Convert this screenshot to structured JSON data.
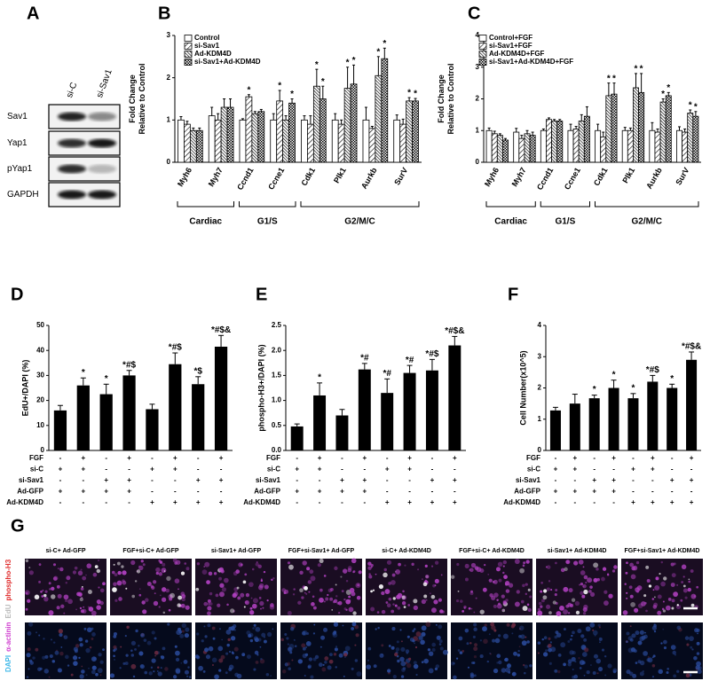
{
  "blot": {
    "panel_label": "A",
    "lanes": [
      "si-C",
      "si-Sav1"
    ],
    "rows": [
      "Sav1",
      "Yap1",
      "pYap1",
      "GAPDH"
    ]
  },
  "chart_data": [
    {
      "type": "bar",
      "panel_label": "B",
      "ylabel": [
        "Fold Change",
        "Relative to Control"
      ],
      "categories": [
        "Myh6",
        "Myh7",
        "Ccnd1",
        "Ccne1",
        "Cdk1",
        "Plk1",
        "Aurkb",
        "SurV"
      ],
      "groups": [
        {
          "label": "Cardiac",
          "from": 0,
          "to": 1
        },
        {
          "label": "G1/S",
          "from": 2,
          "to": 3
        },
        {
          "label": "G2/M/C",
          "from": 4,
          "to": 7
        }
      ],
      "ylim": [
        0,
        3
      ],
      "yticks": [
        0,
        1,
        2,
        3
      ],
      "series": [
        {
          "name": "Control",
          "fill": "white",
          "values": [
            1.0,
            1.1,
            1.0,
            1.0,
            1.0,
            1.0,
            1.0,
            1.0
          ],
          "errors": [
            0.08,
            0.2,
            0.03,
            0.15,
            0.1,
            0.15,
            0.3,
            0.12
          ],
          "significance": [
            null,
            null,
            null,
            null,
            null,
            null,
            null,
            null
          ]
        },
        {
          "name": "si-Sav1",
          "fill": "hatch",
          "values": [
            0.9,
            1.0,
            1.55,
            1.45,
            0.9,
            0.9,
            0.8,
            0.9
          ],
          "errors": [
            0.07,
            0.15,
            0.05,
            0.25,
            0.2,
            0.1,
            0.05,
            0.12
          ],
          "significance": [
            null,
            null,
            "*",
            "*",
            null,
            null,
            null,
            null
          ]
        },
        {
          "name": "Ad-KDM4D",
          "fill": "dense",
          "values": [
            0.75,
            1.3,
            1.15,
            1.0,
            1.8,
            1.75,
            2.05,
            1.45
          ],
          "errors": [
            0.06,
            0.2,
            0.05,
            0.1,
            0.4,
            0.5,
            0.45,
            0.08
          ],
          "significance": [
            null,
            null,
            null,
            null,
            "*",
            "*",
            "*",
            "*"
          ]
        },
        {
          "name": "si-Sav1+Ad-KDM4D",
          "fill": "checker",
          "values": [
            0.75,
            1.3,
            1.2,
            1.4,
            1.5,
            1.85,
            2.45,
            1.45
          ],
          "errors": [
            0.06,
            0.2,
            0.05,
            0.1,
            0.3,
            0.45,
            0.25,
            0.06
          ],
          "significance": [
            null,
            null,
            null,
            "*",
            "*",
            "*",
            "*",
            "*"
          ]
        }
      ]
    },
    {
      "type": "bar",
      "panel_label": "C",
      "ylabel": [
        "Fold Change",
        "Relative to Control"
      ],
      "categories": [
        "Myh6",
        "Myh7",
        "Ccnd1",
        "Ccne1",
        "Cdk1",
        "Plk1",
        "Aurkb",
        "SurV"
      ],
      "groups": [
        {
          "label": "Cardiac",
          "from": 0,
          "to": 1
        },
        {
          "label": "G1/S",
          "from": 2,
          "to": 3
        },
        {
          "label": "G2/M/C",
          "from": 4,
          "to": 7
        }
      ],
      "ylim": [
        0,
        4
      ],
      "yticks": [
        0,
        1,
        2,
        3,
        4
      ],
      "series": [
        {
          "name": "Control+FGF",
          "fill": "white",
          "values": [
            1.0,
            0.95,
            1.0,
            1.0,
            1.0,
            1.0,
            1.0,
            1.0
          ],
          "errors": [
            0.08,
            0.12,
            0.05,
            0.2,
            0.2,
            0.1,
            0.25,
            0.12
          ],
          "significance": [
            null,
            null,
            null,
            null,
            null,
            null,
            null,
            null
          ]
        },
        {
          "name": "si-Sav1+FGF",
          "fill": "hatch",
          "values": [
            0.9,
            0.75,
            1.35,
            1.05,
            0.8,
            1.0,
            0.95,
            0.95
          ],
          "errors": [
            0.08,
            0.1,
            0.05,
            0.08,
            0.15,
            0.08,
            0.1,
            0.1
          ],
          "significance": [
            null,
            null,
            null,
            null,
            null,
            null,
            null,
            null
          ]
        },
        {
          "name": "Ad-KDM4D+FGF",
          "fill": "dense",
          "values": [
            0.85,
            0.9,
            1.3,
            1.3,
            2.1,
            2.35,
            1.9,
            1.55
          ],
          "errors": [
            0.05,
            0.1,
            0.05,
            0.2,
            0.4,
            0.45,
            0.1,
            0.1
          ],
          "significance": [
            null,
            null,
            null,
            null,
            "*",
            "*",
            "*",
            "*"
          ]
        },
        {
          "name": "si-Sav1+Ad-KDM4D+FGF",
          "fill": "checker",
          "values": [
            0.7,
            0.85,
            1.3,
            1.45,
            2.15,
            2.2,
            2.1,
            1.45
          ],
          "errors": [
            0.05,
            0.1,
            0.05,
            0.3,
            0.35,
            0.6,
            0.1,
            0.15
          ],
          "significance": [
            null,
            null,
            null,
            null,
            "*",
            "*",
            "*",
            "*"
          ]
        }
      ]
    },
    {
      "type": "bar",
      "panel_label": "D",
      "ylabel": [
        "EdU+/DAPI (%)"
      ],
      "color": "#000000",
      "values": [
        16,
        26,
        22.5,
        30,
        16.5,
        34.5,
        26.5,
        41.5
      ],
      "errors": [
        2,
        3,
        4,
        2,
        2,
        4.5,
        3,
        4.5
      ],
      "significance": [
        null,
        "*",
        "*",
        "*#$",
        null,
        "*#$",
        "*$",
        "*#$&"
      ],
      "ylim": [
        0,
        50
      ],
      "yticks": [
        0,
        10,
        20,
        30,
        40,
        50
      ],
      "treatments": {
        "rows": [
          "FGF",
          "si-C",
          "si-Sav1",
          "Ad-GFP",
          "Ad-KDM4D"
        ],
        "signs": [
          [
            "-",
            "+",
            "-",
            "+",
            "-",
            "+",
            "-",
            "+"
          ],
          [
            "+",
            "+",
            "-",
            "-",
            "+",
            "+",
            "-",
            "-"
          ],
          [
            "-",
            "-",
            "+",
            "+",
            "-",
            "-",
            "+",
            "+"
          ],
          [
            "+",
            "+",
            "+",
            "+",
            "-",
            "-",
            "-",
            "-"
          ],
          [
            "-",
            "-",
            "-",
            "-",
            "+",
            "+",
            "+",
            "+"
          ]
        ]
      }
    },
    {
      "type": "bar",
      "panel_label": "E",
      "ylabel": [
        "phospho-H3+/DAPI (%)"
      ],
      "color": "#000000",
      "values": [
        0.48,
        1.1,
        0.7,
        1.62,
        1.15,
        1.55,
        1.6,
        2.1
      ],
      "errors": [
        0.05,
        0.25,
        0.12,
        0.12,
        0.28,
        0.15,
        0.22,
        0.18
      ],
      "significance": [
        null,
        "*",
        null,
        "*#",
        "*#",
        "*#",
        "*#$",
        "*#$&"
      ],
      "ylim": [
        0,
        2.5
      ],
      "yticks": [
        {
          "value": 0,
          "label": "0.0"
        },
        0.5,
        {
          "value": 1,
          "label": "1.0"
        },
        1.5,
        {
          "value": 2,
          "label": "2.0"
        },
        2.5
      ],
      "treatments": {
        "rows": [
          "FGF",
          "si-C",
          "si-Sav1",
          "Ad-GFP",
          "Ad-KDM4D"
        ],
        "signs": [
          [
            "-",
            "+",
            "-",
            "+",
            "-",
            "+",
            "-",
            "+"
          ],
          [
            "+",
            "+",
            "-",
            "-",
            "+",
            "+",
            "-",
            "-"
          ],
          [
            "-",
            "-",
            "+",
            "+",
            "-",
            "-",
            "+",
            "+"
          ],
          [
            "+",
            "+",
            "+",
            "+",
            "-",
            "-",
            "-",
            "-"
          ],
          [
            "-",
            "-",
            "-",
            "-",
            "+",
            "+",
            "+",
            "+"
          ]
        ]
      }
    },
    {
      "type": "bar",
      "panel_label": "F",
      "ylabel": [
        "Cell Number(x10^5)"
      ],
      "color": "#000000",
      "values": [
        1.28,
        1.5,
        1.67,
        2.0,
        1.67,
        2.2,
        2.0,
        2.9
      ],
      "errors": [
        0.1,
        0.3,
        0.1,
        0.25,
        0.15,
        0.2,
        0.12,
        0.25
      ],
      "significance": [
        null,
        null,
        "*",
        "*",
        "*",
        "*#$",
        "*",
        "*#$&"
      ],
      "ylim": [
        0,
        4
      ],
      "yticks": [
        0,
        1,
        2,
        3,
        4
      ],
      "treatments": {
        "rows": [
          "FGF",
          "si-C",
          "si-Sav1",
          "Ad-GFP",
          "Ad-KDM4D"
        ],
        "signs": [
          [
            "-",
            "+",
            "-",
            "+",
            "-",
            "+",
            "-",
            "+"
          ],
          [
            "+",
            "+",
            "-",
            "-",
            "+",
            "+",
            "-",
            "-"
          ],
          [
            "-",
            "-",
            "+",
            "+",
            "-",
            "-",
            "+",
            "+"
          ],
          [
            "+",
            "+",
            "+",
            "+",
            "-",
            "-",
            "-",
            "-"
          ],
          [
            "-",
            "-",
            "-",
            "-",
            "+",
            "+",
            "+",
            "+"
          ]
        ]
      }
    }
  ],
  "micrographs": {
    "panel_label": "G",
    "columns": [
      "si-C+ Ad-GFP",
      "FGF+si-C+ Ad-GFP",
      "si-Sav1+ Ad-GFP",
      "FGF+si-Sav1+ Ad-GFP",
      "si-C+ Ad-KDM4D",
      "FGF+si-C+ Ad-KDM4D",
      "si-Sav1+ Ad-KDM4D",
      "FGF+si-Sav1+ Ad-KDM4D"
    ],
    "stains": [
      "DAPI",
      "α-actinin",
      "EdU",
      "phospho-H3"
    ],
    "stain_colors": [
      "#3fb8e8",
      "#d040d0",
      "#bbbbbb",
      "#e03030"
    ]
  }
}
